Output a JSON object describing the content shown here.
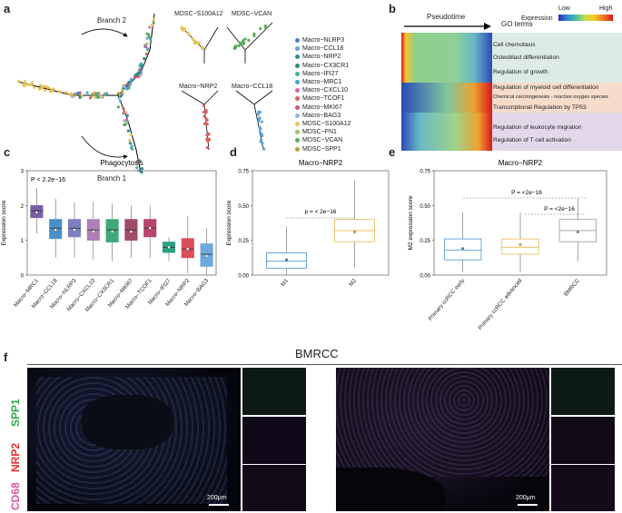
{
  "panels": {
    "a": "a",
    "b": "b",
    "c": "c",
    "d": "d",
    "e": "e",
    "f": "f"
  },
  "panel_a": {
    "branch2": "Branch 2",
    "branch1": "Branch 1",
    "mini_titles": [
      "MDSC−S100A12",
      "MDSC−VCAN",
      "Macro−NRP2",
      "Macro−CCL18"
    ],
    "legend": [
      {
        "name": "Macro−NLRP3",
        "color": "#4a7fbf"
      },
      {
        "name": "Macro−CCL18",
        "color": "#5fa0d8"
      },
      {
        "name": "Macro−NRP2",
        "color": "#2d8f8f"
      },
      {
        "name": "Macro−CX3CR1",
        "color": "#2e8b7a"
      },
      {
        "name": "Macro−IFI27",
        "color": "#45b39d"
      },
      {
        "name": "Macro−MRC1",
        "color": "#3fa7c9"
      },
      {
        "name": "Macro−CXCL10",
        "color": "#d964a8"
      },
      {
        "name": "Macro−TCOF1",
        "color": "#e05c5c"
      },
      {
        "name": "Macro−MKI67",
        "color": "#c7567f"
      },
      {
        "name": "Macro−BAG3",
        "color": "#8fb8e8"
      },
      {
        "name": "MDSC−S100A12",
        "color": "#e8c55a"
      },
      {
        "name": "MDSC−FN1",
        "color": "#9ac36a"
      },
      {
        "name": "MDSC−VCAN",
        "color": "#5aaa5a"
      },
      {
        "name": "MDSC−SPP1",
        "color": "#b8a040"
      }
    ]
  },
  "panel_b": {
    "pseudotime": "Pseudotime",
    "go_terms": "GO terms",
    "low": "Low",
    "high": "High",
    "expression": "Expression",
    "terms": [
      "Cell chemotaxis",
      "Osteoblast differentiation",
      "Regulation of growth",
      "Regulation of myeloid cell differentiation",
      "Chemical carcinogenesis - reactive oxygen species",
      "Transcriptional Regulation by TP53",
      "Regulation of leukocyte migration",
      "Regulation of T cell activation"
    ]
  },
  "chart_data": [
    {
      "type": "box",
      "title": "Phagocytosis",
      "ylabel": "Expression score",
      "pvalue": "P  < 2.2e−16",
      "ylim": [
        0,
        3
      ],
      "yticks": [
        "0",
        "1",
        "2",
        "3"
      ],
      "categories": [
        "Macro−MRC1",
        "Macro−CCL18",
        "Macro−NLRP3",
        "Macro−CXCL10",
        "Macro−CX3CR1",
        "Macro−MKI67",
        "Macro−TCOF1",
        "Macro−IFI27",
        "Macro−NRP2",
        "Macro−BAG3"
      ],
      "colors": [
        "#7b5ea7",
        "#4a90c8",
        "#7d7fc0",
        "#b07fb5",
        "#3fa87a",
        "#a34a6a",
        "#b8456a",
        "#2e9e80",
        "#d94f5c",
        "#6fa8dc"
      ],
      "medians": [
        1.85,
        1.35,
        1.35,
        1.3,
        1.3,
        1.3,
        1.35,
        0.8,
        0.75,
        0.6
      ],
      "q1": [
        1.65,
        1.05,
        1.1,
        1.0,
        0.95,
        1.0,
        1.1,
        0.65,
        0.5,
        0.25
      ],
      "q3": [
        2.0,
        1.6,
        1.6,
        1.6,
        1.6,
        1.6,
        1.6,
        0.95,
        1.05,
        0.9
      ],
      "wlo": [
        1.2,
        0.5,
        0.5,
        0.45,
        0.4,
        0.5,
        0.5,
        0.4,
        0.05,
        0.0
      ],
      "whi": [
        2.5,
        2.2,
        2.1,
        2.1,
        2.05,
        2.0,
        2.0,
        1.1,
        1.7,
        1.35
      ],
      "means": [
        1.8,
        1.3,
        1.3,
        1.25,
        1.25,
        1.25,
        1.35,
        0.8,
        0.75,
        0.55
      ]
    },
    {
      "type": "box",
      "title": "Macro−NRP2",
      "ylabel": "Expression score",
      "pvalue": "p = < 2e−16",
      "ylim": [
        0,
        0.75
      ],
      "yticks": [
        "0.00",
        "0.25",
        "0.50",
        "0.75"
      ],
      "categories": [
        "M1",
        "M2"
      ],
      "colors": [
        "#4a90c8",
        "#e8b84a"
      ],
      "medians": [
        0.1,
        0.32
      ],
      "q1": [
        0.05,
        0.24
      ],
      "q3": [
        0.16,
        0.4
      ],
      "wlo": [
        0.0,
        0.05
      ],
      "whi": [
        0.35,
        0.68
      ],
      "means": [
        0.11,
        0.31
      ]
    },
    {
      "type": "box",
      "title": "Macro−NRP2",
      "ylabel": "M2 expression score",
      "pvalue_top": "P = <2e−16",
      "pvalue_mid": "P = <2e−16",
      "ylim": [
        0,
        0.75
      ],
      "yticks": [
        "0.00",
        "0.25",
        "0.50",
        "0.75"
      ],
      "categories": [
        "Primary ccRCC early",
        "Primary ccRCC advanced",
        "BMRCC"
      ],
      "colors": [
        "#4a90c8",
        "#e8b84a",
        "#9a9a9a"
      ],
      "medians": [
        0.18,
        0.2,
        0.32
      ],
      "q1": [
        0.11,
        0.15,
        0.24
      ],
      "q3": [
        0.26,
        0.26,
        0.4
      ],
      "wlo": [
        0.02,
        0.02,
        0.1
      ],
      "whi": [
        0.45,
        0.45,
        0.55
      ],
      "means": [
        0.19,
        0.22,
        0.31
      ]
    }
  ],
  "panel_f": {
    "title": "BMRCC",
    "markers": [
      {
        "name": "SPP1",
        "color": "#2ea84a"
      },
      {
        "name": "NRP2",
        "color": "#e03030"
      },
      {
        "name": "CD68",
        "color": "#d85aa0"
      }
    ],
    "scale": "200μm"
  }
}
